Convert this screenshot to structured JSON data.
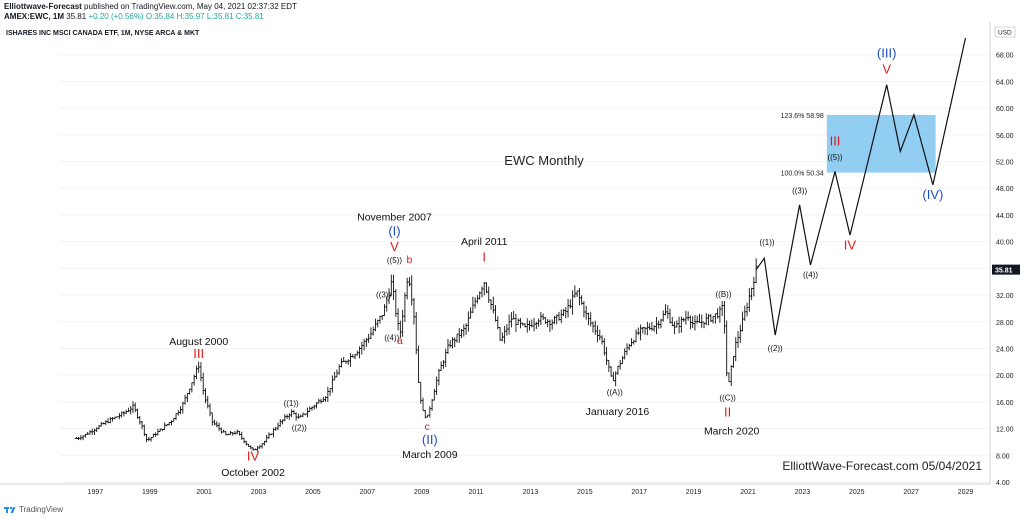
{
  "header": {
    "author": "Elliottwave-Forecast",
    "published": "published on TradingView.com, May 04, 2021 02:37:32 EDT",
    "symbol_line": "AMEX:EWC, 1M",
    "price": "35.81",
    "change": "+0.20 (+0.56%)",
    "ohlc": "O:35.84 H:35.97 L:35.81 C:35.81"
  },
  "symbol_title": "ISHARES INC MSCI CANADA ETF, 1M, NYSE ARCA & MKT",
  "footer": {
    "brand": "TradingView"
  },
  "colors": {
    "price_bar": "#111111",
    "projection": "#111111",
    "red_label": "#e01b1b",
    "blue_label": "#1f4fbf",
    "fib_box": "#7fc4f0",
    "axis_text": "#222222",
    "grid": "#f2f3f5"
  },
  "chart_data": {
    "type": "ohlc-bar",
    "title": "EWC Monthly",
    "watermark": "ElliottWave-Forecast.com 05/04/2021",
    "axis_unit": "USD",
    "last_price_tag": "35.81",
    "ylim": [
      4,
      72
    ],
    "xlim": [
      1995.7,
      2029.9
    ],
    "y_ticks": [
      4,
      8,
      12,
      16,
      20,
      24,
      28,
      32,
      36,
      40,
      44,
      48,
      52,
      56,
      60,
      64,
      68
    ],
    "x_ticks": [
      1997,
      1999,
      2001,
      2003,
      2005,
      2007,
      2009,
      2011,
      2013,
      2015,
      2017,
      2019,
      2021,
      2023,
      2025,
      2027,
      2029
    ],
    "price_path": [
      [
        1996.3,
        10.5
      ],
      [
        1996.6,
        11.0
      ],
      [
        1997.0,
        12.0
      ],
      [
        1997.5,
        13.2
      ],
      [
        1998.0,
        14.2
      ],
      [
        1998.4,
        15.3
      ],
      [
        1998.7,
        12.5
      ],
      [
        1998.9,
        10.2
      ],
      [
        1999.3,
        11.5
      ],
      [
        1999.8,
        13.2
      ],
      [
        2000.2,
        15.5
      ],
      [
        2000.6,
        19.5
      ],
      [
        2000.8,
        21.5
      ],
      [
        2001.0,
        17.0
      ],
      [
        2001.3,
        13.0
      ],
      [
        2001.8,
        11.0
      ],
      [
        2002.2,
        11.5
      ],
      [
        2002.6,
        9.5
      ],
      [
        2002.8,
        8.7
      ],
      [
        2003.2,
        10.0
      ],
      [
        2003.7,
        12.5
      ],
      [
        2004.2,
        14.5
      ],
      [
        2004.5,
        13.5
      ],
      [
        2004.9,
        15.0
      ],
      [
        2005.5,
        17.0
      ],
      [
        2006.0,
        21.5
      ],
      [
        2006.6,
        23.5
      ],
      [
        2007.1,
        26.0
      ],
      [
        2007.6,
        29.5
      ],
      [
        2007.9,
        34.0
      ],
      [
        2008.1,
        28.0
      ],
      [
        2008.2,
        26.0
      ],
      [
        2008.5,
        35.5
      ],
      [
        2008.7,
        30.0
      ],
      [
        2008.9,
        18.0
      ],
      [
        2009.05,
        14.5
      ],
      [
        2009.2,
        13.5
      ],
      [
        2009.6,
        20.0
      ],
      [
        2010.0,
        24.5
      ],
      [
        2010.6,
        27.0
      ],
      [
        2011.0,
        31.5
      ],
      [
        2011.3,
        34.0
      ],
      [
        2011.7,
        28.5
      ],
      [
        2011.9,
        25.0
      ],
      [
        2012.3,
        28.5
      ],
      [
        2012.8,
        27.0
      ],
      [
        2013.3,
        28.5
      ],
      [
        2013.8,
        28.0
      ],
      [
        2014.3,
        29.5
      ],
      [
        2014.7,
        32.5
      ],
      [
        2015.1,
        28.5
      ],
      [
        2015.6,
        25.5
      ],
      [
        2016.0,
        19.0
      ],
      [
        2016.2,
        21.0
      ],
      [
        2016.6,
        24.5
      ],
      [
        2017.0,
        26.5
      ],
      [
        2017.6,
        27.5
      ],
      [
        2018.0,
        29.5
      ],
      [
        2018.3,
        27.0
      ],
      [
        2018.8,
        29.0
      ],
      [
        2019.0,
        27.5
      ],
      [
        2019.6,
        28.5
      ],
      [
        2020.0,
        29.5
      ],
      [
        2020.1,
        30.5
      ],
      [
        2020.25,
        17.5
      ],
      [
        2020.5,
        24.0
      ],
      [
        2020.8,
        28.0
      ],
      [
        2021.0,
        31.0
      ],
      [
        2021.3,
        35.8
      ]
    ],
    "projection_path": [
      [
        2021.3,
        35.8
      ],
      [
        2021.6,
        37.5
      ],
      [
        2022.0,
        26.0
      ],
      [
        2022.9,
        45.5
      ],
      [
        2023.3,
        36.5
      ],
      [
        2024.2,
        50.5
      ],
      [
        2024.75,
        41.0
      ],
      [
        2026.1,
        63.5
      ],
      [
        2026.6,
        53.5
      ],
      [
        2027.1,
        59.0
      ],
      [
        2027.8,
        48.5
      ],
      [
        2029.0,
        70.5
      ]
    ],
    "fib_box": {
      "x": [
        2023.9,
        2027.9
      ],
      "y": [
        50.34,
        58.98
      ]
    },
    "fib_labels": [
      {
        "text": "123.6% 58.98",
        "y": 58.98
      },
      {
        "text": "100.0% 50.34",
        "y": 50.34
      }
    ],
    "annotations": [
      {
        "text": "August 2000",
        "x": 2000.8,
        "y": 24.5,
        "color": "dark",
        "size": "m"
      },
      {
        "text": "III",
        "x": 2000.8,
        "y": 22.6,
        "color": "red",
        "size": "l"
      },
      {
        "text": "IV",
        "x": 2002.8,
        "y": 7.2,
        "color": "red",
        "size": "l"
      },
      {
        "text": "October 2002",
        "x": 2002.8,
        "y": 4.9,
        "color": "dark",
        "size": "m"
      },
      {
        "text": "((1))",
        "x": 2004.2,
        "y": 15.4,
        "color": "dark",
        "size": "s"
      },
      {
        "text": "((2))",
        "x": 2004.5,
        "y": 11.7,
        "color": "dark",
        "size": "s"
      },
      {
        "text": "((3))",
        "x": 2007.6,
        "y": 31.6,
        "color": "dark",
        "size": "s"
      },
      {
        "text": "((4))",
        "x": 2007.9,
        "y": 25.2,
        "color": "dark",
        "size": "s"
      },
      {
        "text": "a",
        "x": 2008.2,
        "y": 24.7,
        "color": "red",
        "size": "m"
      },
      {
        "text": "((5))",
        "x": 2008.0,
        "y": 36.8,
        "color": "dark",
        "size": "s"
      },
      {
        "text": "b",
        "x": 2008.55,
        "y": 36.8,
        "color": "red",
        "size": "m"
      },
      {
        "text": "V",
        "x": 2008.0,
        "y": 38.6,
        "color": "red",
        "size": "l"
      },
      {
        "text": "(I)",
        "x": 2008.0,
        "y": 40.9,
        "color": "blue",
        "size": "l"
      },
      {
        "text": "November 2007",
        "x": 2008.0,
        "y": 43.2,
        "color": "dark",
        "size": "m"
      },
      {
        "text": "c",
        "x": 2009.2,
        "y": 11.8,
        "color": "red",
        "size": "m"
      },
      {
        "text": "(II)",
        "x": 2009.3,
        "y": 9.7,
        "color": "blue",
        "size": "l"
      },
      {
        "text": "March 2009",
        "x": 2009.3,
        "y": 7.6,
        "color": "dark",
        "size": "m"
      },
      {
        "text": "April 2011",
        "x": 2011.3,
        "y": 39.5,
        "color": "dark",
        "size": "m"
      },
      {
        "text": "I",
        "x": 2011.3,
        "y": 37.0,
        "color": "red",
        "size": "l"
      },
      {
        "text": "((A))",
        "x": 2016.1,
        "y": 17.0,
        "color": "dark",
        "size": "s"
      },
      {
        "text": "January 2016",
        "x": 2016.2,
        "y": 14.0,
        "color": "dark",
        "size": "m"
      },
      {
        "text": "((B))",
        "x": 2020.1,
        "y": 31.7,
        "color": "dark",
        "size": "s"
      },
      {
        "text": "((C))",
        "x": 2020.25,
        "y": 16.2,
        "color": "dark",
        "size": "s"
      },
      {
        "text": "II",
        "x": 2020.25,
        "y": 13.8,
        "color": "red",
        "size": "l"
      },
      {
        "text": "March 2020",
        "x": 2020.4,
        "y": 11.1,
        "color": "dark",
        "size": "m"
      },
      {
        "text": "((1))",
        "x": 2021.7,
        "y": 39.5,
        "color": "dark",
        "size": "s"
      },
      {
        "text": "((2))",
        "x": 2022.0,
        "y": 23.6,
        "color": "dark",
        "size": "s"
      },
      {
        "text": "((3))",
        "x": 2022.9,
        "y": 47.2,
        "color": "dark",
        "size": "s"
      },
      {
        "text": "((4))",
        "x": 2023.3,
        "y": 34.6,
        "color": "dark",
        "size": "s"
      },
      {
        "text": "((5))",
        "x": 2024.2,
        "y": 52.2,
        "color": "dark",
        "size": "s"
      },
      {
        "text": "III",
        "x": 2024.2,
        "y": 54.4,
        "color": "red",
        "size": "l"
      },
      {
        "text": "IV",
        "x": 2024.75,
        "y": 38.8,
        "color": "red",
        "size": "l"
      },
      {
        "text": "V",
        "x": 2026.1,
        "y": 65.2,
        "color": "red",
        "size": "l"
      },
      {
        "text": "(III)",
        "x": 2026.1,
        "y": 67.6,
        "color": "blue",
        "size": "l"
      },
      {
        "text": "(IV)",
        "x": 2027.8,
        "y": 46.4,
        "color": "blue",
        "size": "l"
      }
    ]
  }
}
